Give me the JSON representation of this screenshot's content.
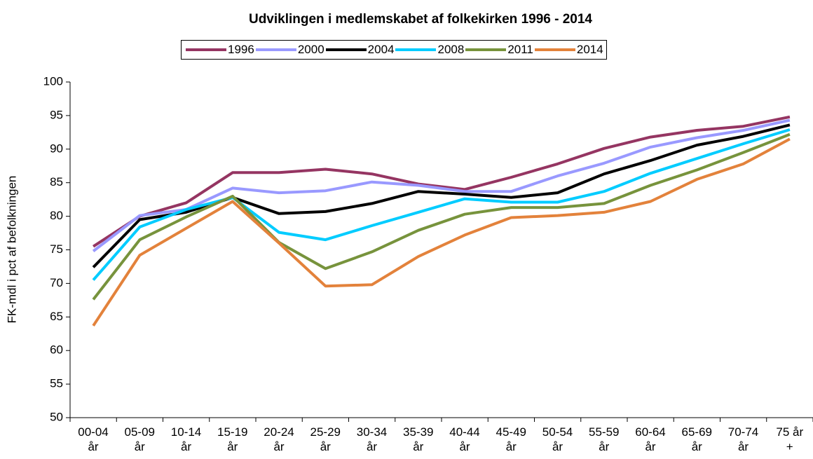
{
  "chart_data": {
    "type": "line",
    "title": "Udviklingen i medlemskabet af folkekirken 1996 - 2014",
    "y_label": "FK-mdl i pct af befolkningen",
    "categories": [
      "00-04\når",
      "05-09\når",
      "10-14\når",
      "15-19\når",
      "20-24\når",
      "25-29\når",
      "30-34\når",
      "35-39\når",
      "40-44\når",
      "45-49\når",
      "50-54\når",
      "55-59\når",
      "60-64\når",
      "65-69\når",
      "70-74\når",
      "75 år\n+"
    ],
    "series": [
      {
        "name": "1996",
        "color": "#953562",
        "values": [
          75.5,
          80,
          82,
          86.5,
          86.5,
          87,
          86.3,
          84.8,
          84,
          85.8,
          87.8,
          90.1,
          91.8,
          92.8,
          93.4,
          94.8
        ]
      },
      {
        "name": "2000",
        "color": "#9999ff",
        "values": [
          74.8,
          80.1,
          81,
          84.2,
          83.5,
          83.8,
          85.1,
          84.6,
          83.7,
          83.7,
          86,
          87.9,
          90.3,
          91.7,
          92.8,
          94.3
        ]
      },
      {
        "name": "2004",
        "color": "#000000",
        "values": [
          72.4,
          79.5,
          80.6,
          82.8,
          80.4,
          80.7,
          81.9,
          83.7,
          83.3,
          82.8,
          83.5,
          86.3,
          88.3,
          90.6,
          91.9,
          93.6
        ]
      },
      {
        "name": "2008",
        "color": "#00ccff",
        "values": [
          70.5,
          78.4,
          81,
          82.8,
          77.6,
          76.5,
          78.6,
          80.6,
          82.6,
          82.1,
          82.1,
          83.7,
          86.4,
          88.6,
          90.8,
          92.9
        ]
      },
      {
        "name": "2011",
        "color": "#77933c",
        "values": [
          67.6,
          76.5,
          79.9,
          83,
          76.1,
          72.2,
          74.7,
          77.9,
          80.3,
          81.3,
          81.3,
          81.9,
          84.6,
          86.9,
          89.5,
          92.2
        ]
      },
      {
        "name": "2014",
        "color": "#e3823b",
        "values": [
          63.7,
          74.2,
          78.2,
          82.2,
          76,
          69.6,
          69.8,
          74,
          77.2,
          79.8,
          80.1,
          80.6,
          82.2,
          85.5,
          87.8,
          91.5
        ]
      }
    ],
    "ylim": [
      50,
      100
    ],
    "yticks": [
      50,
      55,
      60,
      65,
      70,
      75,
      80,
      85,
      90,
      95,
      100
    ],
    "grid": false
  }
}
